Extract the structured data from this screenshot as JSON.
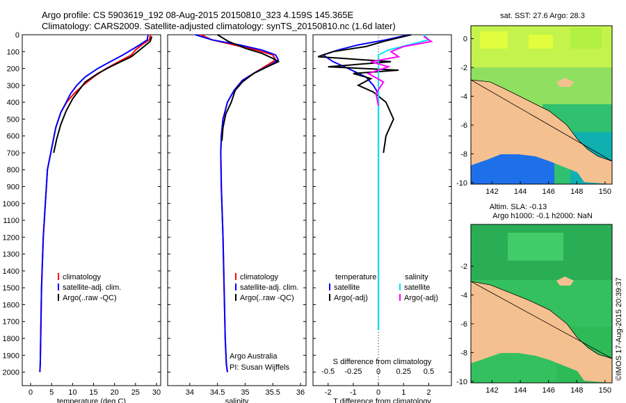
{
  "header": {
    "line1": "Argo profile: CS 5903619_192 08-Aug-2015 20150810_323 4.159S 145.365E",
    "line2": "Climatology: CARS2009. Satellite-adjusted climatology: synTS_20150810.nc (1.6d later)"
  },
  "colors": {
    "climatology": "#ff0000",
    "satellite": "#0000ff",
    "argo": "#000000",
    "salinity_satellite": "#00e5ee",
    "salinity_argo": "#ff00ff",
    "land": "#f5c08f",
    "sst_cool": "#1565ff",
    "sst_warm": "#f0ff20",
    "sla_ocean": "#2ec45a"
  },
  "chart_data": [
    {
      "type": "line",
      "id": "temperature",
      "xlabel": "temperature (deg C)",
      "xlim": [
        -2,
        31
      ],
      "ylim": [
        2080,
        0
      ],
      "xticks": [
        0,
        5,
        10,
        15,
        20,
        25,
        30
      ],
      "yticks": [
        0,
        100,
        200,
        300,
        400,
        500,
        600,
        700,
        800,
        900,
        1000,
        1100,
        1200,
        1300,
        1400,
        1500,
        1600,
        1700,
        1800,
        1900,
        2000
      ],
      "legend": [
        "climatology",
        "satellite-adj. clim.",
        "Argo(..raw -QC)"
      ],
      "series": [
        {
          "name": "climatology",
          "color_key": "climatology",
          "x": [
            28.6,
            28.3,
            26.5,
            25.0,
            24.0,
            21.0,
            18.0,
            15.0,
            12.5,
            10.3,
            8.6,
            7.2,
            6.0,
            5.2,
            4.0,
            3.5,
            3.0,
            2.6,
            2.4,
            2.3,
            2.2
          ],
          "y": [
            0,
            30,
            60,
            90,
            120,
            160,
            200,
            250,
            300,
            350,
            400,
            460,
            550,
            650,
            800,
            1000,
            1200,
            1500,
            1800,
            1950,
            2000
          ]
        },
        {
          "name": "satellite-adj. clim.",
          "color_key": "satellite",
          "x": [
            28.0,
            27.8,
            26.0,
            24.0,
            22.0,
            19.0,
            16.0,
            13.0,
            11.0,
            9.5,
            8.5,
            7.2,
            6.0,
            5.2,
            4.0,
            3.5,
            3.0,
            2.6,
            2.4,
            2.3,
            2.2
          ],
          "y": [
            0,
            30,
            60,
            90,
            120,
            160,
            200,
            250,
            300,
            350,
            400,
            460,
            550,
            650,
            800,
            1000,
            1200,
            1500,
            1800,
            1950,
            2000
          ]
        },
        {
          "name": "Argo(..raw -QC)",
          "color_key": "argo",
          "x": [
            28.9,
            28.5,
            27.0,
            25.5,
            24.0,
            21.5,
            19.0,
            16.0,
            13.0,
            11.5,
            10.0,
            8.5,
            7.2,
            6.2,
            5.5
          ],
          "y": [
            10,
            40,
            70,
            100,
            130,
            160,
            190,
            230,
            280,
            330,
            380,
            450,
            530,
            620,
            700
          ]
        }
      ]
    },
    {
      "type": "line",
      "id": "salinity",
      "xlabel": "salinity",
      "xlim": [
        33.6,
        36.1
      ],
      "ylim": [
        2080,
        0
      ],
      "xticks": [
        34,
        34.5,
        35,
        35.5,
        36
      ],
      "legend": [
        "climatology",
        "satellite-adj. clim.",
        "Argo(..raw -QC)"
      ],
      "series": [
        {
          "name": "climatology",
          "color_key": "climatology",
          "x": [
            34.2,
            34.4,
            34.8,
            35.2,
            35.5,
            35.55,
            35.4,
            35.2,
            34.95,
            34.8,
            34.68,
            34.6,
            34.57,
            34.56,
            34.57,
            34.6,
            34.62,
            34.64,
            34.66,
            34.68
          ],
          "y": [
            0,
            30,
            60,
            90,
            120,
            150,
            180,
            220,
            270,
            330,
            400,
            500,
            600,
            700,
            900,
            1200,
            1500,
            1800,
            1950,
            2000
          ]
        },
        {
          "name": "satellite-adj. clim.",
          "color_key": "satellite",
          "x": [
            34.1,
            34.4,
            34.9,
            35.3,
            35.55,
            35.6,
            35.45,
            35.2,
            34.95,
            34.8,
            34.68,
            34.6,
            34.57,
            34.56,
            34.57,
            34.6,
            34.62,
            34.64,
            34.66,
            34.68
          ],
          "y": [
            0,
            30,
            60,
            90,
            120,
            150,
            180,
            220,
            270,
            330,
            400,
            500,
            600,
            700,
            900,
            1200,
            1500,
            1800,
            1950,
            2000
          ]
        },
        {
          "name": "Argo(..raw -QC)",
          "color_key": "argo",
          "x": [
            34.5,
            34.7,
            35.0,
            35.3,
            35.5,
            35.6,
            35.4,
            35.15,
            34.95,
            34.82,
            34.75,
            34.65,
            34.6,
            34.58
          ],
          "y": [
            0,
            40,
            80,
            110,
            140,
            160,
            190,
            230,
            280,
            330,
            400,
            470,
            550,
            630
          ]
        }
      ]
    },
    {
      "type": "line",
      "id": "difference",
      "xlabel": "T difference from climatology",
      "xlabel_top": "S difference from climatology",
      "xlim": [
        -2.6,
        2.9
      ],
      "ylim": [
        2080,
        0
      ],
      "xticks_bottom": [
        -2,
        -1,
        0,
        1,
        2
      ],
      "xticks_top_labels": [
        "-0.5",
        "-0.25",
        "0",
        "0.25",
        "0.5"
      ],
      "legend_left_title": "temperature",
      "legend_right_title": "salinity",
      "legend_left": [
        "satellite",
        "Argo(-adj)"
      ],
      "legend_right": [
        "satellite",
        "Argo(-adj)"
      ],
      "series": [
        {
          "name": "temperature satellite",
          "color_key": "satellite",
          "x": [
            1.2,
            0.3,
            -0.8,
            -1.6,
            -2.2,
            -1.8,
            -1.2,
            -0.5,
            -0.2,
            0.0,
            0.0,
            0.0,
            0.0,
            0.0,
            0.0
          ],
          "y": [
            0,
            30,
            60,
            90,
            120,
            160,
            200,
            250,
            300,
            350,
            400,
            500,
            800,
            1400,
            1750
          ]
        },
        {
          "name": "temperature Argo(-adj)",
          "color_key": "argo",
          "x": [
            1.3,
            0.2,
            -0.5,
            -1.8,
            -2.4,
            0.5,
            -2.0,
            0.8,
            -1.0,
            -0.3,
            -0.8,
            -0.2,
            0.3,
            0.6,
            0.3,
            0.2
          ],
          "y": [
            0,
            40,
            70,
            100,
            130,
            160,
            190,
            210,
            230,
            260,
            300,
            340,
            400,
            500,
            600,
            700
          ]
        },
        {
          "name": "salinity satellite",
          "color_key": "salinity_satellite",
          "x": [
            1.8,
            2.0,
            1.2,
            0.4,
            0.0,
            0.0,
            0.0,
            0.0,
            0.0,
            0.0
          ],
          "y": [
            0,
            30,
            60,
            90,
            120,
            200,
            400,
            800,
            1400,
            1750
          ]
        },
        {
          "name": "salinity Argo(-adj)",
          "color_key": "salinity_argo",
          "x": [
            1.8,
            2.1,
            1.0,
            0.5,
            0.8,
            -0.3,
            0.4,
            -0.4,
            0.2,
            -0.1,
            0.0
          ],
          "y": [
            10,
            40,
            70,
            100,
            130,
            160,
            190,
            230,
            280,
            350,
            420
          ]
        }
      ]
    },
    {
      "type": "heatmap",
      "id": "sst_map",
      "title": "sat. SST: 27.6 Argo: 28.3",
      "xticks": [
        142,
        144,
        146,
        148,
        150
      ],
      "yticks": [
        0,
        -2,
        -4,
        -6,
        -8,
        -10
      ]
    },
    {
      "type": "heatmap",
      "id": "sla_map",
      "title_line1": "Altim. SLA: -0.13",
      "title_line2": "Argo h1000: -0.1 h2000: NaN",
      "xticks": [
        142,
        144,
        146,
        148,
        150
      ],
      "yticks": [
        -2,
        -4,
        -6,
        -8,
        -10
      ]
    }
  ],
  "footer": {
    "credit_org": "Argo Australia",
    "credit_pi": "PI: Susan Wijffels",
    "copyright": "©IMOS 17-Aug-2015 20:39:37"
  }
}
